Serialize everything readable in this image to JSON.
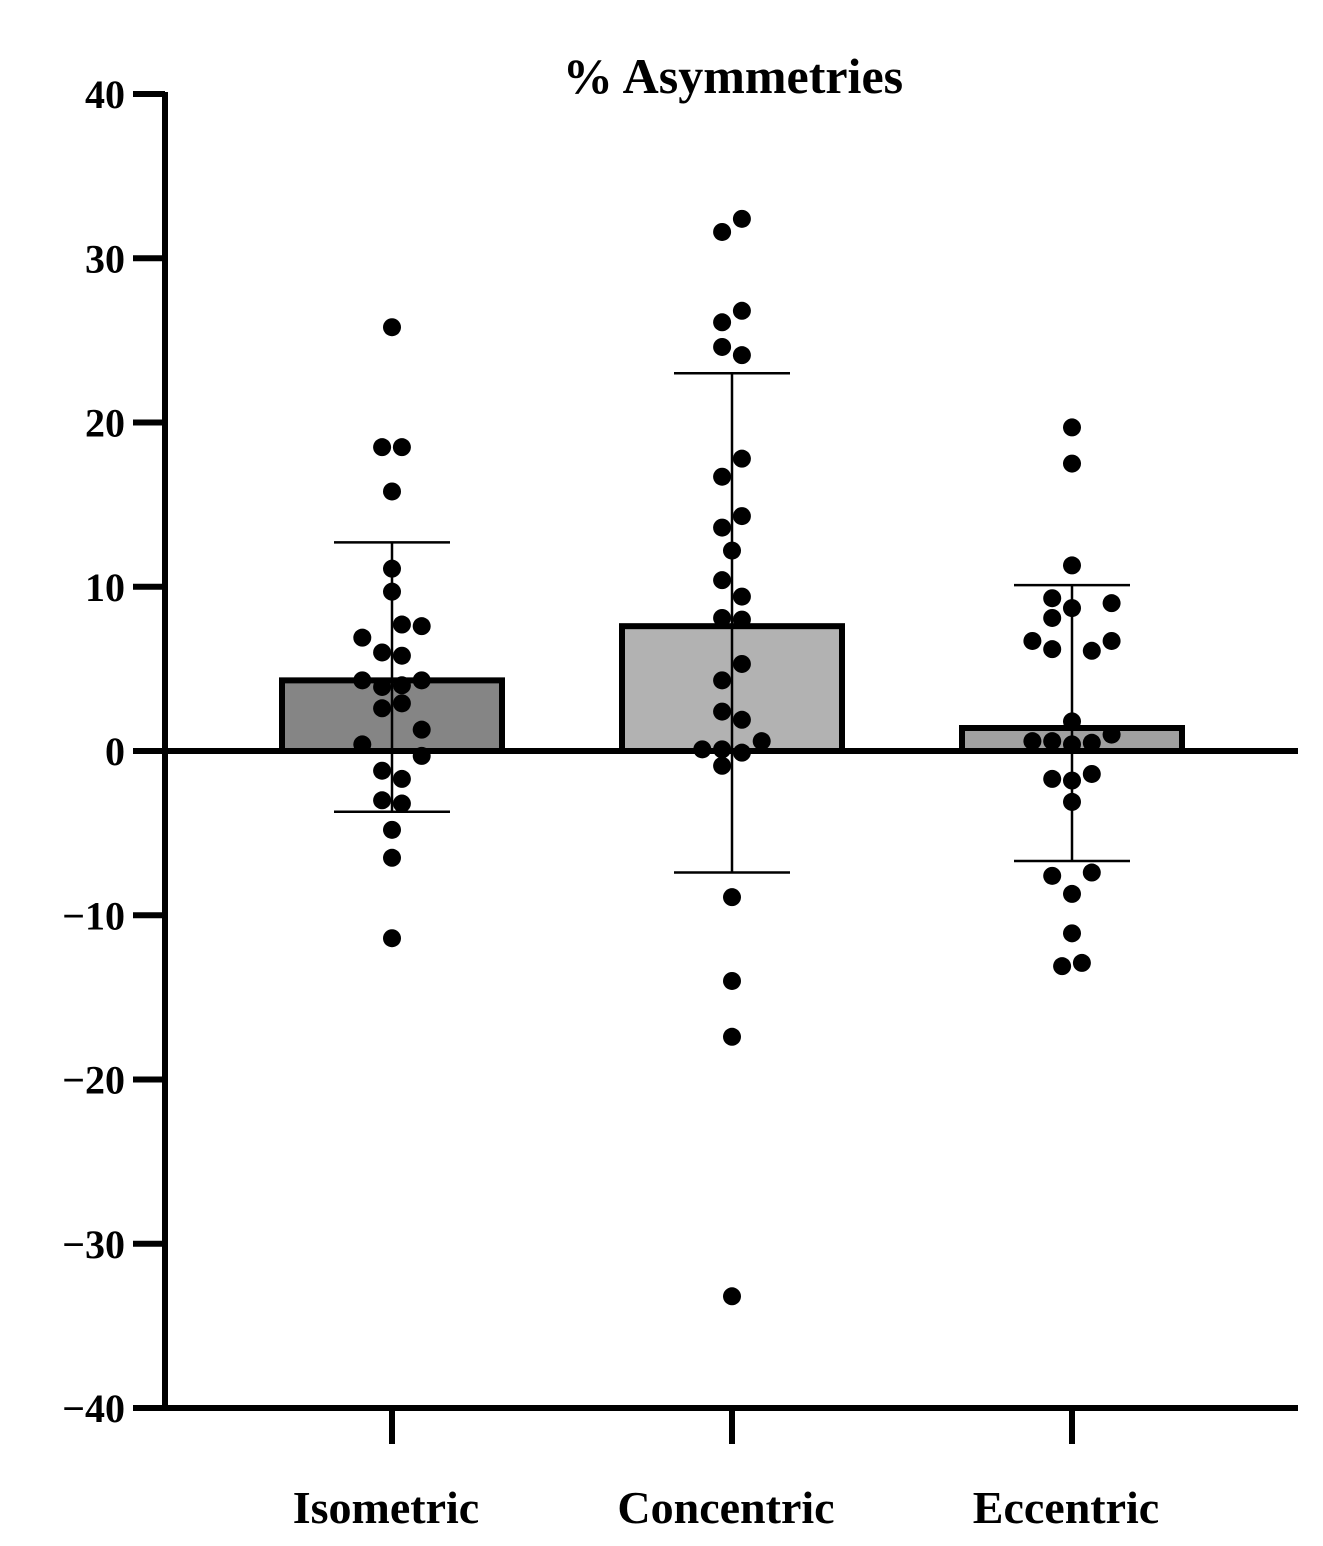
{
  "chart_data": {
    "type": "bar",
    "title": "% Asymmetries",
    "xlabel": "",
    "ylabel": "",
    "ylim": [
      -40,
      40
    ],
    "yticks": [
      40,
      30,
      20,
      10,
      0,
      -10,
      -20,
      -30,
      -40
    ],
    "ytick_labels": [
      "40",
      "30",
      "20",
      "10",
      "0",
      "−10",
      "−20",
      "−30",
      "−40"
    ],
    "categories": [
      "Isometric",
      "Concentric",
      "Eccentric"
    ],
    "values": [
      4.3,
      7.6,
      1.4
    ],
    "error_bars": [
      {
        "upper": 12.7,
        "lower": -3.7
      },
      {
        "upper": 23.0,
        "lower": -7.4
      },
      {
        "upper": 10.1,
        "lower": -6.7
      }
    ],
    "bar_colors": [
      "#858585",
      "#b2b2b2",
      "#a0a0a0"
    ],
    "points": [
      [
        {
          "dx": 0.0,
          "y": 25.8
        },
        {
          "dx": -0.6,
          "y": 18.5
        },
        {
          "dx": 0.6,
          "y": 18.5
        },
        {
          "dx": 0.0,
          "y": 15.8
        },
        {
          "dx": 0.0,
          "y": 11.1
        },
        {
          "dx": 0.0,
          "y": 9.7
        },
        {
          "dx": 0.6,
          "y": 7.7
        },
        {
          "dx": 1.8,
          "y": 7.6
        },
        {
          "dx": -1.8,
          "y": 6.9
        },
        {
          "dx": -0.6,
          "y": 6.0
        },
        {
          "dx": 0.6,
          "y": 5.8
        },
        {
          "dx": -1.8,
          "y": 4.3
        },
        {
          "dx": -0.6,
          "y": 3.9
        },
        {
          "dx": 0.6,
          "y": 4.0
        },
        {
          "dx": 1.8,
          "y": 4.3
        },
        {
          "dx": -0.6,
          "y": 2.6
        },
        {
          "dx": 0.6,
          "y": 2.9
        },
        {
          "dx": 1.8,
          "y": 1.3
        },
        {
          "dx": -1.8,
          "y": 0.4
        },
        {
          "dx": 1.8,
          "y": -0.3
        },
        {
          "dx": -0.6,
          "y": -1.2
        },
        {
          "dx": 0.6,
          "y": -1.7
        },
        {
          "dx": -0.6,
          "y": -3.0
        },
        {
          "dx": 0.6,
          "y": -3.2
        },
        {
          "dx": 0.0,
          "y": -4.8
        },
        {
          "dx": 0.0,
          "y": -6.5
        },
        {
          "dx": 0.0,
          "y": -11.4
        }
      ],
      [
        {
          "dx": 0.6,
          "y": 32.4
        },
        {
          "dx": -0.6,
          "y": 31.6
        },
        {
          "dx": 0.6,
          "y": 26.8
        },
        {
          "dx": -0.6,
          "y": 26.1
        },
        {
          "dx": -0.6,
          "y": 24.6
        },
        {
          "dx": 0.6,
          "y": 24.1
        },
        {
          "dx": 0.6,
          "y": 17.8
        },
        {
          "dx": -0.6,
          "y": 16.7
        },
        {
          "dx": 0.6,
          "y": 14.3
        },
        {
          "dx": -0.6,
          "y": 13.6
        },
        {
          "dx": 0.0,
          "y": 12.2
        },
        {
          "dx": -0.6,
          "y": 10.4
        },
        {
          "dx": 0.6,
          "y": 9.4
        },
        {
          "dx": -0.6,
          "y": 8.1
        },
        {
          "dx": 0.6,
          "y": 8.0
        },
        {
          "dx": 0.6,
          "y": 5.3
        },
        {
          "dx": -0.6,
          "y": 4.3
        },
        {
          "dx": -0.6,
          "y": 2.4
        },
        {
          "dx": 0.6,
          "y": 1.9
        },
        {
          "dx": 1.8,
          "y": 0.6
        },
        {
          "dx": -1.8,
          "y": 0.1
        },
        {
          "dx": -0.6,
          "y": 0.1
        },
        {
          "dx": 0.6,
          "y": -0.1
        },
        {
          "dx": -0.6,
          "y": -0.9
        },
        {
          "dx": 0.0,
          "y": -8.9
        },
        {
          "dx": 0.0,
          "y": -14.0
        },
        {
          "dx": 0.0,
          "y": -17.4
        },
        {
          "dx": 0.0,
          "y": -33.2
        }
      ],
      [
        {
          "dx": 0.0,
          "y": 19.7
        },
        {
          "dx": 0.0,
          "y": 17.5
        },
        {
          "dx": 0.0,
          "y": 11.3
        },
        {
          "dx": -1.2,
          "y": 9.3
        },
        {
          "dx": 2.4,
          "y": 9.0
        },
        {
          "dx": 0.0,
          "y": 8.7
        },
        {
          "dx": -1.2,
          "y": 8.1
        },
        {
          "dx": -2.4,
          "y": 6.7
        },
        {
          "dx": 2.4,
          "y": 6.7
        },
        {
          "dx": -1.2,
          "y": 6.2
        },
        {
          "dx": 1.2,
          "y": 6.1
        },
        {
          "dx": 0.0,
          "y": 1.8
        },
        {
          "dx": 2.4,
          "y": 1.0
        },
        {
          "dx": -2.4,
          "y": 0.6
        },
        {
          "dx": -1.2,
          "y": 0.6
        },
        {
          "dx": 0.0,
          "y": 0.4
        },
        {
          "dx": 1.2,
          "y": 0.5
        },
        {
          "dx": -1.2,
          "y": -1.7
        },
        {
          "dx": 0.0,
          "y": -1.8
        },
        {
          "dx": 1.2,
          "y": -1.4
        },
        {
          "dx": 0.0,
          "y": -3.1
        },
        {
          "dx": -1.2,
          "y": -7.6
        },
        {
          "dx": 1.2,
          "y": -7.4
        },
        {
          "dx": 0.0,
          "y": -8.7
        },
        {
          "dx": 0.0,
          "y": -11.1
        },
        {
          "dx": -0.6,
          "y": -13.1
        },
        {
          "dx": 0.6,
          "y": -12.9
        }
      ]
    ],
    "legend": "none",
    "grid": false
  }
}
